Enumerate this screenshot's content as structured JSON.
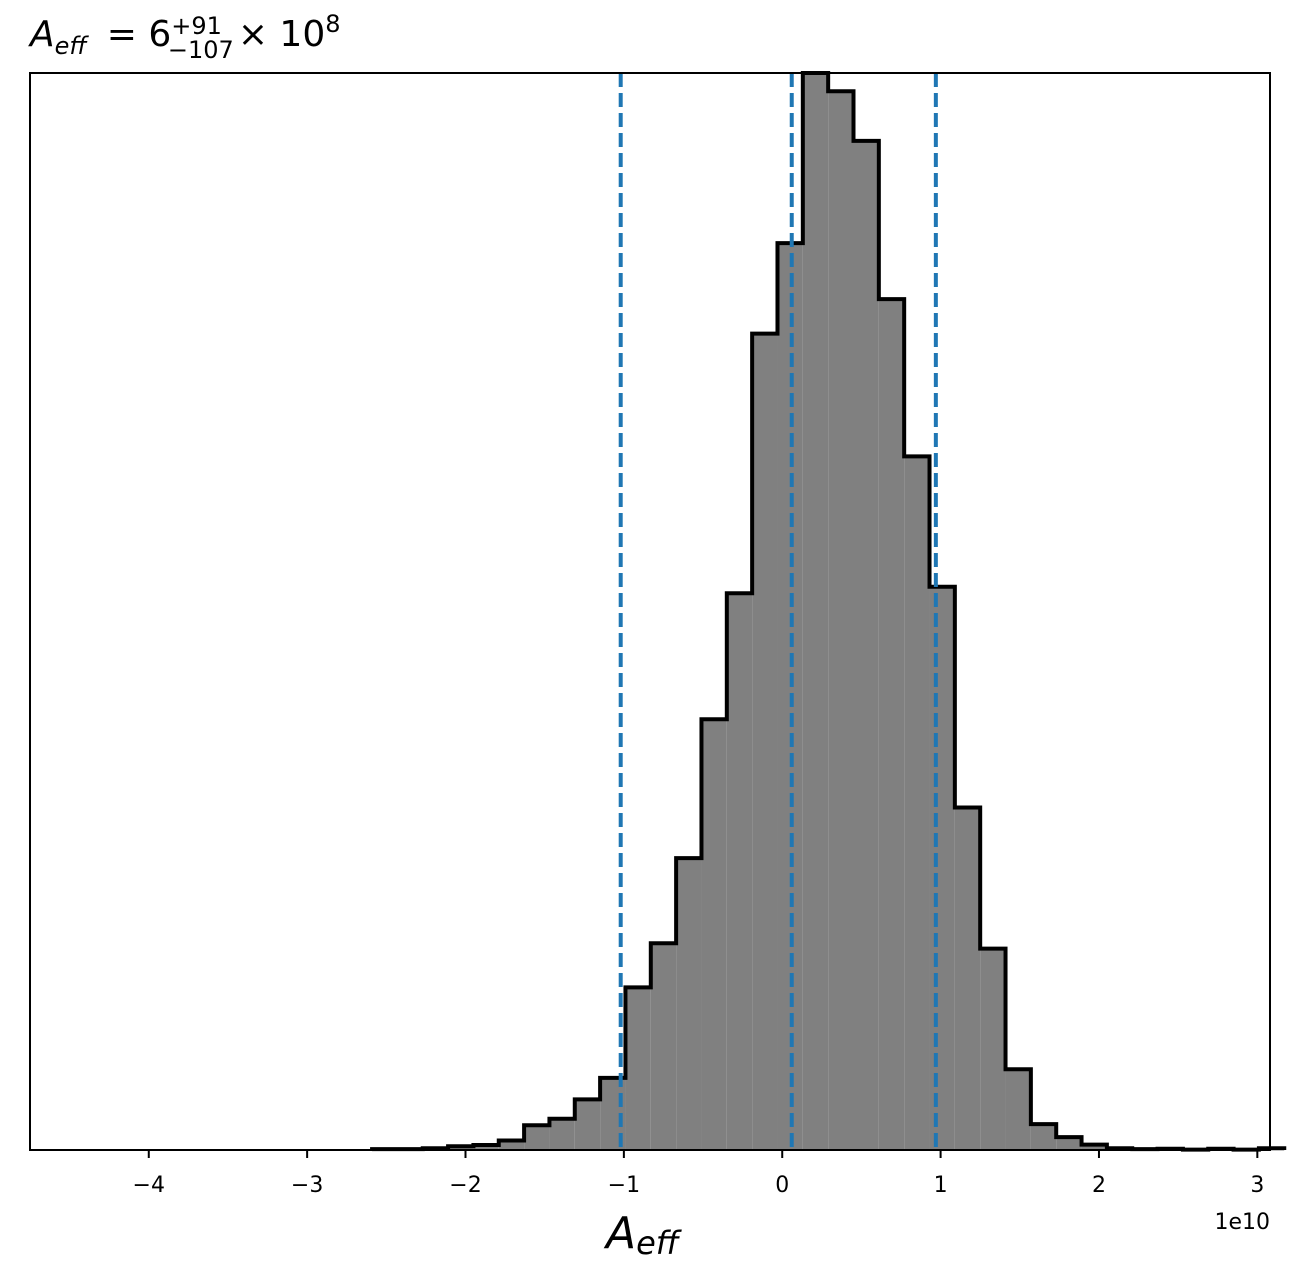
{
  "chart_data": {
    "type": "histogram",
    "title": {
      "symbol": "A",
      "symbol_subscript": "eff",
      "equals": "= 6",
      "sup": "+91",
      "sub": "−107",
      "times": "× 10",
      "exp": "8"
    },
    "xlabel": {
      "symbol": "A",
      "subscript": "eff"
    },
    "ylabel": "",
    "x_offset_label": "1e10",
    "xlim": [
      -4.75,
      3.08
    ],
    "ylim": [
      0,
      1000
    ],
    "y_axis_ticks": false,
    "x_ticks": [
      -4,
      -3,
      -2,
      -1,
      0,
      1,
      2,
      3
    ],
    "x_tick_labels": [
      "−4",
      "−3",
      "−2",
      "−1",
      "0",
      "1",
      "2",
      "3"
    ],
    "bin_start": -2.59,
    "bin_width": 0.16,
    "counts": [
      0.8,
      0.8,
      1.6,
      3.5,
      4.6,
      8.8,
      23,
      29,
      47,
      67,
      151,
      192,
      271,
      400,
      517,
      758,
      842,
      1000,
      983,
      937,
      790,
      644,
      523,
      318,
      187,
      75,
      24,
      12,
      5,
      1.6,
      0.8,
      1.2,
      0.4,
      1.2,
      0.4,
      1.6
    ],
    "fill_color": "#808080",
    "edge_color": "#000000",
    "quantile_lines": [
      -1.02,
      0.06,
      0.97
    ],
    "quantile_color": "#1f77b4",
    "quantile_style": "dashed",
    "grid": false
  }
}
